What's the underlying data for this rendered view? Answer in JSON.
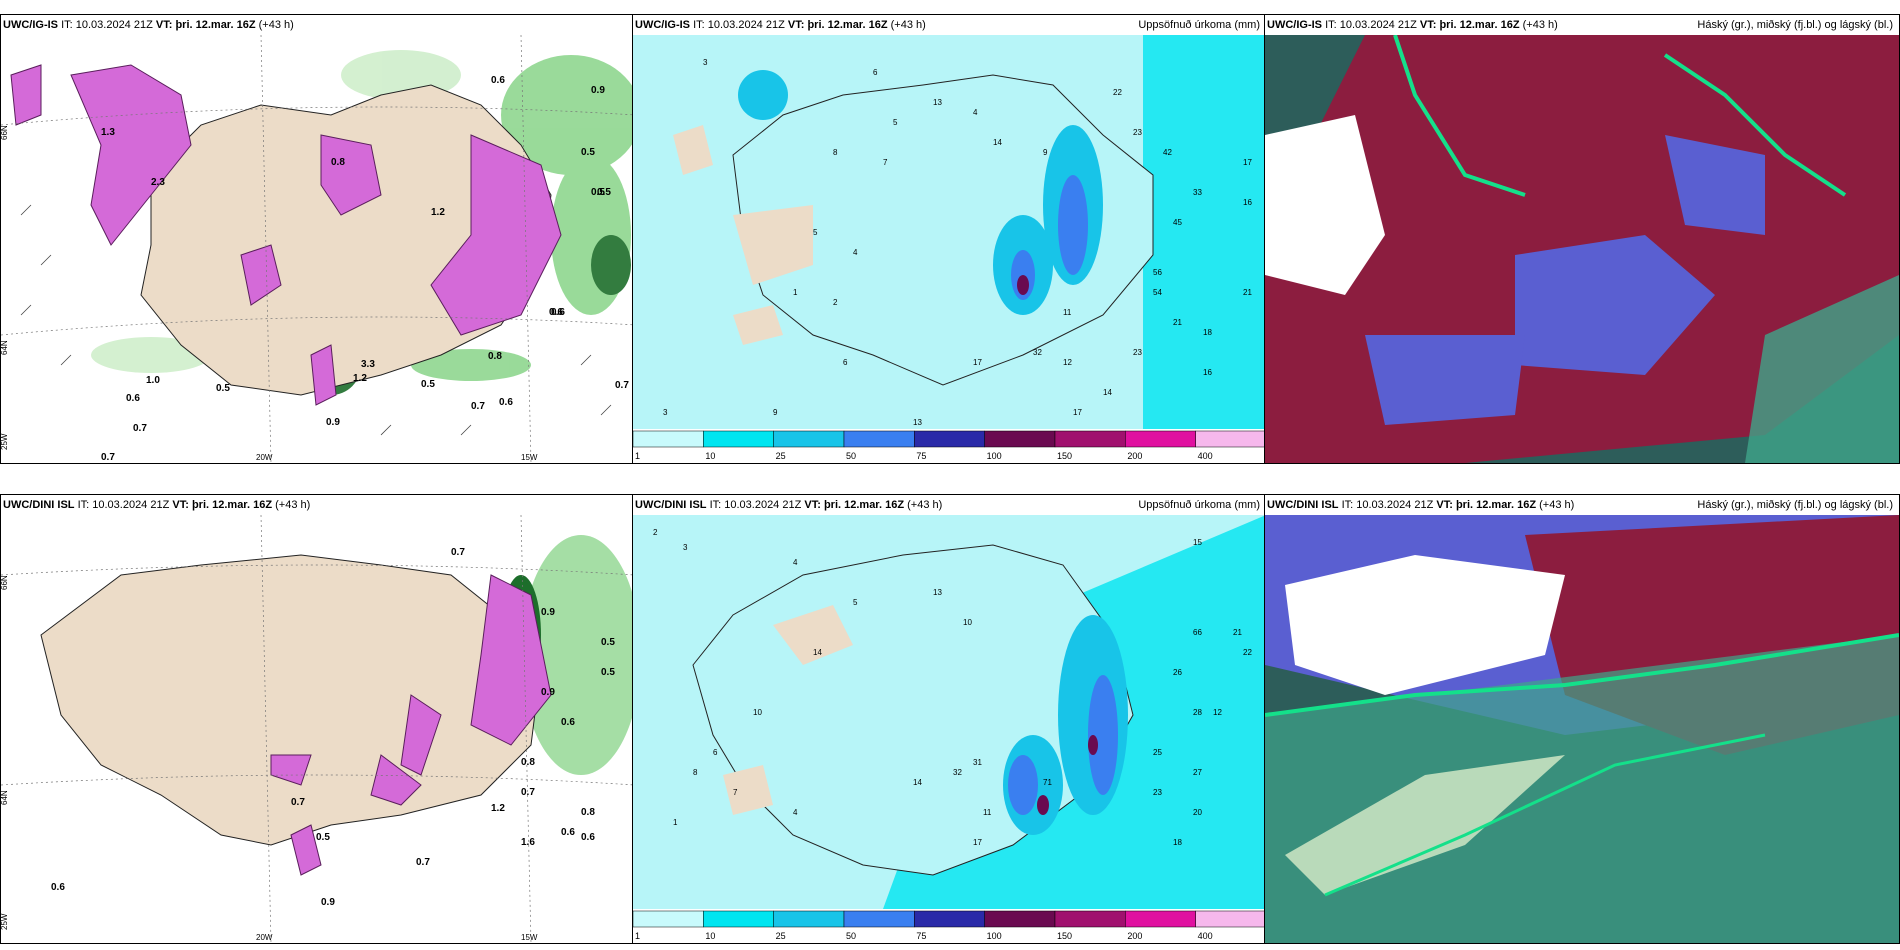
{
  "panels": [
    {
      "model": "UWC/IG-IS",
      "it_label": "IT:",
      "it": "10.03.2024 21Z",
      "vt_label": "VT:",
      "vt": "þri. 12.mar. 16Z",
      "lead": "(+43 h)",
      "right": "",
      "type": "precip-rate"
    },
    {
      "model": "UWC/IG-IS",
      "it_label": "IT:",
      "it": "10.03.2024 21Z",
      "vt_label": "VT:",
      "vt": "þri. 12.mar. 16Z",
      "lead": "(+43 h)",
      "right": "Uppsöfnuð úrkoma (mm)",
      "type": "accum"
    },
    {
      "model": "UWC/IG-IS",
      "it_label": "IT:",
      "it": "10.03.2024 21Z",
      "vt_label": "VT:",
      "vt": "þri. 12.mar. 16Z",
      "lead": "(+43 h)",
      "right": "Háský (gr.), miðský (fj.bl.) og lágský (bl.)",
      "type": "cloud"
    },
    {
      "model": "UWC/DINI ISL",
      "it_label": "IT:",
      "it": "10.03.2024 21Z",
      "vt_label": "VT:",
      "vt": "þri. 12.mar. 16Z",
      "lead": "(+43 h)",
      "right": "",
      "type": "precip-rate"
    },
    {
      "model": "UWC/DINI ISL",
      "it_label": "IT:",
      "it": "10.03.2024 21Z",
      "vt_label": "VT:",
      "vt": "þri. 12.mar. 16Z",
      "lead": "(+43 h)",
      "right": "Uppsöfnuð úrkoma (mm)",
      "type": "accum"
    },
    {
      "model": "UWC/DINI ISL",
      "it_label": "IT:",
      "it": "10.03.2024 21Z",
      "vt_label": "VT:",
      "vt": "þri. 12.mar. 16Z",
      "lead": "(+43 h)",
      "right": "Háský (gr.), miðský (fj.bl.) og lágský (bl.)",
      "type": "cloud"
    }
  ],
  "axis_labels": {
    "lon_20": "20W",
    "lon_15": "15W",
    "lat_66": "66N",
    "lat_64": "64N",
    "lon_25": "25W"
  },
  "legend": {
    "ticks": [
      "1",
      "10",
      "25",
      "50",
      "75",
      "100",
      "150",
      "200",
      "400"
    ],
    "colors": [
      "#c8fafc",
      "#00e5f0",
      "#18c4e8",
      "#3a7ff0",
      "#2a2aa8",
      "#6a0a50",
      "#a0106e",
      "#e010a0",
      "#f6b8ec"
    ]
  },
  "precip_labels_top": [
    "0.6",
    "0.9",
    "0.5",
    "0.5",
    "1.3",
    "2.3",
    "0.8",
    "1.2",
    "0.6",
    "1.0",
    "0.7",
    "0.7",
    "0.5",
    "0.6",
    "0.9",
    "0.8",
    "0.7",
    "0.6",
    "0.7",
    "0.5",
    "0.5",
    "0.6",
    "1.2",
    "3.3"
  ],
  "precip_labels_bottom": [
    "0.7",
    "0.9",
    "0.5",
    "0.9",
    "0.6",
    "0.7",
    "0.8",
    "0.6",
    "0.8",
    "0.7",
    "1.2",
    "0.6",
    "0.5",
    "0.9",
    "0.6",
    "0.7",
    "1.6",
    "0.5"
  ],
  "accum_labels_top": [
    "3",
    "6",
    "13",
    "4",
    "5",
    "14",
    "22",
    "9",
    "23",
    "42",
    "33",
    "17",
    "16",
    "21",
    "45",
    "54",
    "32",
    "56",
    "23",
    "21",
    "18",
    "16",
    "17",
    "14",
    "13",
    "12",
    "11",
    "8",
    "7",
    "5",
    "4",
    "1",
    "2",
    "6",
    "17",
    "9",
    "3"
  ],
  "accum_labels_bottom": [
    "2",
    "3",
    "4",
    "5",
    "13",
    "10",
    "15",
    "14",
    "21",
    "22",
    "26",
    "28",
    "66",
    "71",
    "25",
    "27",
    "23",
    "18",
    "20",
    "32",
    "31",
    "14",
    "11",
    "17",
    "12",
    "10",
    "6",
    "7",
    "4",
    "1",
    "8"
  ],
  "colors": {
    "land": "#ecdcc8",
    "precip_purple": "#d46ad8",
    "precip_green": "#8fd68f",
    "dark_green": "#1d6e2b",
    "accum_base": "#b7f5f8",
    "cloud_dark": "#2d5d5a",
    "cloud_red": "#8c1d3f",
    "cloud_blue": "#5a5fd1"
  }
}
